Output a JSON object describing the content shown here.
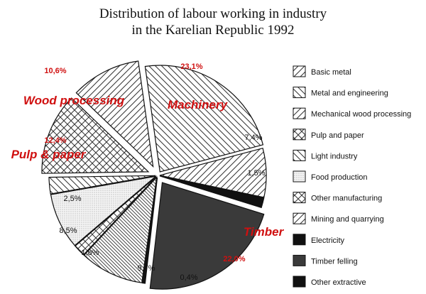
{
  "chart_data": {
    "type": "pie",
    "title_line1": "Distribution of labour working in industry",
    "title_line2": "in the Karelian Republic 1992",
    "slices": [
      {
        "label": "Basic metal",
        "value": 0,
        "pattern": "hatch-fwd",
        "pct_label": ""
      },
      {
        "label": "Metal and engineering",
        "value": 23.1,
        "pattern": "hatch-back",
        "pct_label": "23,1%"
      },
      {
        "label": "Mining and quarrying",
        "value": 7.4,
        "pattern": "hatch-fwd",
        "pct_label": "7,4%"
      },
      {
        "label": "Other extractive",
        "value": 1.5,
        "pattern": "solid-black",
        "pct_label": "1,5%"
      },
      {
        "label": "Timber felling",
        "value": 22.0,
        "pattern": "solid-dark",
        "pct_label": "22,0%"
      },
      {
        "label": "Electricity",
        "value": 0.4,
        "pattern": "solid-black",
        "pct_label": "0,4%"
      },
      {
        "label": "Light industry",
        "value": 9.7,
        "pattern": "hatch-back-dense",
        "pct_label": "9,7%"
      },
      {
        "label": "Other manufacturing",
        "value": 1.8,
        "pattern": "crosshatch",
        "pct_label": "1,8%"
      },
      {
        "label": "Food production",
        "value": 8.5,
        "pattern": "dots",
        "pct_label": "8,5%"
      },
      {
        "label": "Light industry",
        "value": 2.5,
        "pattern": "hatch-back",
        "pct_label": "2,5%"
      },
      {
        "label": "Pulp and paper",
        "value": 12.4,
        "pattern": "crosshatch",
        "pct_label": "12,4%"
      },
      {
        "label": "Mechanical wood processing",
        "value": 10.6,
        "pattern": "hatch-fwd",
        "pct_label": "10,6%"
      }
    ],
    "legend": [
      {
        "label": "Basic metal",
        "pattern": "hatch-fwd"
      },
      {
        "label": "Metal and engineering",
        "pattern": "hatch-back"
      },
      {
        "label": "Mechanical wood processing",
        "pattern": "hatch-fwd"
      },
      {
        "label": "Pulp and paper",
        "pattern": "crosshatch"
      },
      {
        "label": "Light industry",
        "pattern": "hatch-back"
      },
      {
        "label": "Food production",
        "pattern": "dots"
      },
      {
        "label": "Other manufacturing",
        "pattern": "crosshatch"
      },
      {
        "label": "Mining and quarrying",
        "pattern": "hatch-fwd"
      },
      {
        "label": "Electricity",
        "pattern": "solid-black"
      },
      {
        "label": "Timber felling",
        "pattern": "solid-dark"
      },
      {
        "label": "Other extractive",
        "pattern": "solid-black"
      }
    ],
    "legend_placement": "right",
    "annotations": [
      {
        "text": "Wood processing",
        "color": "#d01010"
      },
      {
        "text": "Machinery",
        "color": "#d01010"
      },
      {
        "text": "Pulp & paper",
        "color": "#d01010"
      },
      {
        "text": "Timber",
        "color": "#d01010"
      }
    ],
    "red_pct_labels": [
      "10,6%",
      "23,1%",
      "12,4%",
      "22,0%"
    ]
  }
}
